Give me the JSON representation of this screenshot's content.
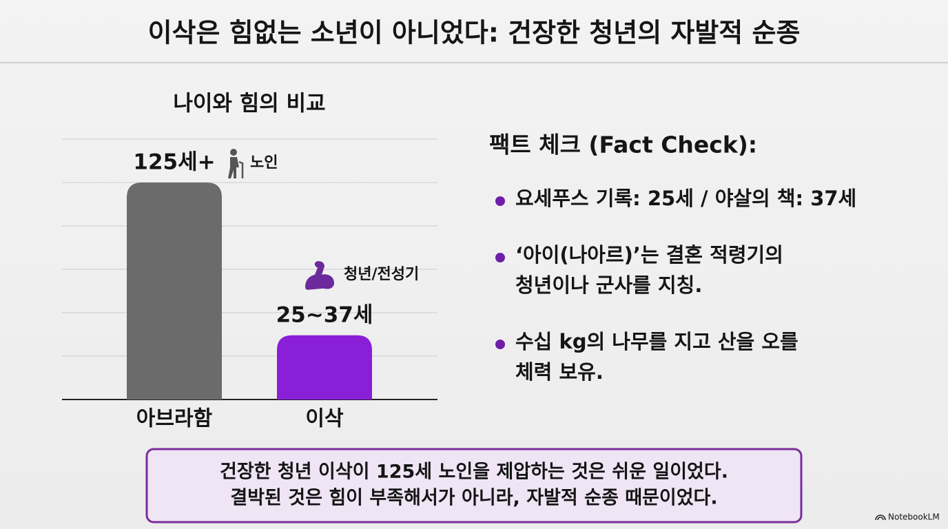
{
  "title": "이삭은 힘없는 소년이 아니었다: 건장한 청년의 자발적 순종",
  "chart_data": {
    "type": "bar",
    "title": "나이와 힘의 비교",
    "categories": [
      "아브라함",
      "이삭"
    ],
    "series": [
      {
        "colors": [
          "#6b6b6b",
          "#8a1fd8"
        ],
        "values": [
          125,
          37
        ],
        "value_labels": [
          "125세+",
          "25~37세"
        ]
      }
    ],
    "annotations": [
      "노인",
      "청년/전성기"
    ],
    "ylim": [
      0,
      150
    ],
    "yticks": [
      0,
      25,
      50,
      75,
      100,
      125,
      150
    ],
    "grid": true
  },
  "fact_check": {
    "heading": "팩트 체크 (Fact Check):",
    "bullets": [
      [
        "요세푸스 기록: 25세 / 야살의 책: 37세"
      ],
      [
        "‘아이(나아르)’는 결혼 적령기의",
        "청년이나 군사를 지칭."
      ],
      [
        "수십 kg의 나무를 지고 산을 오를",
        "체력 보유."
      ]
    ]
  },
  "conclusion": [
    "건장한 청년 이삭이 125세 노인을 제압하는 것은 쉬운 일이었다.",
    "결박된 것은 힘이 부족해서가 아니라, 자발적 순종 때문이었다."
  ],
  "watermark": "NotebookLM"
}
